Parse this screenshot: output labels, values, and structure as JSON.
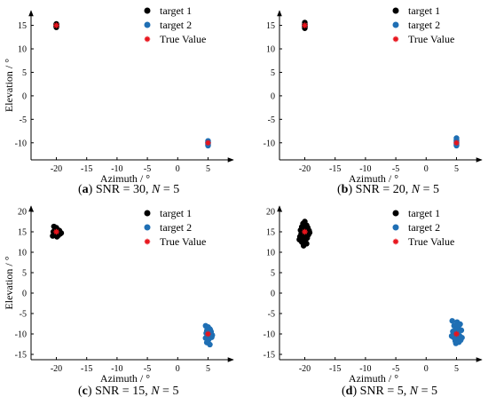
{
  "chart_data": [
    {
      "type": "scatter",
      "panel_label": "(a)",
      "caption": {
        "label": "a",
        "snr_text": "SNR = 30,",
        "n_var": "N",
        "n_text": "= 5"
      },
      "xlabel": "Azimuth / °",
      "ylabel": "Elevation / °",
      "xlim": [
        -23,
        8
      ],
      "ylim": [
        -12.5,
        17
      ],
      "xticks": [
        "-20",
        "-15",
        "-10",
        "-5",
        "0",
        "5"
      ],
      "yticks": [
        "15",
        "10",
        "5",
        "0",
        "-5",
        "-10"
      ],
      "legend_position": "top-right",
      "series": [
        {
          "name": "target 1",
          "color": "#000000",
          "marker": "circle",
          "points": [
            [
              -20,
              15
            ],
            [
              -20,
              14.8
            ],
            [
              -20,
              15.2
            ],
            [
              -20,
              14.6
            ],
            [
              -20,
              15.3
            ],
            [
              -20,
              14.9
            ]
          ]
        },
        {
          "name": "target 2",
          "color": "#1f6fb4",
          "marker": "circle",
          "points": [
            [
              5,
              -10
            ],
            [
              5,
              -9.6
            ],
            [
              5,
              -10.4
            ],
            [
              5,
              -9.8
            ],
            [
              5,
              -10.2
            ],
            [
              5,
              -10.6
            ]
          ]
        },
        {
          "name": "True Value",
          "color": "#e8141c",
          "marker": "star",
          "points": [
            [
              -20,
              15
            ],
            [
              5,
              -10
            ]
          ]
        }
      ]
    },
    {
      "type": "scatter",
      "panel_label": "(b)",
      "caption": {
        "label": "b",
        "snr_text": "SNR = 20,",
        "n_var": "N",
        "n_text": "= 5"
      },
      "xlabel": "Azimuth / °",
      "ylabel": "",
      "xlim": [
        -23,
        8
      ],
      "ylim": [
        -12.5,
        17
      ],
      "xticks": [
        "-20",
        "-15",
        "-10",
        "-5",
        "0",
        "5"
      ],
      "yticks": [
        "15",
        "10",
        "5",
        "0",
        "-5",
        "-10"
      ],
      "legend_position": "top-right",
      "series": [
        {
          "name": "target 1",
          "color": "#000000",
          "marker": "circle",
          "points": [
            [
              -20,
              15.6
            ],
            [
              -20,
              15.2
            ],
            [
              -20,
              14.8
            ],
            [
              -20,
              14.4
            ],
            [
              -20,
              15
            ],
            [
              -20,
              14.6
            ]
          ]
        },
        {
          "name": "target 2",
          "color": "#1f6fb4",
          "marker": "circle",
          "points": [
            [
              5,
              -9
            ],
            [
              5,
              -9.4
            ],
            [
              5,
              -9.8
            ],
            [
              5,
              -10.2
            ],
            [
              5,
              -10.6
            ],
            [
              5,
              -9.6
            ],
            [
              5,
              -10.4
            ]
          ]
        },
        {
          "name": "True Value",
          "color": "#e8141c",
          "marker": "star",
          "points": [
            [
              -20,
              15
            ],
            [
              5,
              -10
            ]
          ]
        }
      ]
    },
    {
      "type": "scatter",
      "panel_label": "(c)",
      "caption": {
        "label": "c",
        "snr_text": "SNR = 15,",
        "n_var": "N",
        "n_text": "= 5"
      },
      "xlabel": "Azimuth / °",
      "ylabel": "Elevation / °",
      "xlim": [
        -23,
        8
      ],
      "ylim": [
        -15,
        20
      ],
      "xticks": [
        "-20",
        "-15",
        "-10",
        "-5",
        "0",
        "5"
      ],
      "yticks": [
        "20",
        "15",
        "10",
        "5",
        "0",
        "-5",
        "-10",
        "-15"
      ],
      "legend_position": "top-right",
      "series": [
        {
          "name": "target 1",
          "color": "#000000",
          "marker": "circle",
          "points": [
            [
              -20.4,
              16.3
            ],
            [
              -20.2,
              15.8
            ],
            [
              -20,
              16
            ],
            [
              -19.8,
              15.5
            ],
            [
              -20.5,
              15
            ],
            [
              -20.3,
              14.6
            ],
            [
              -20.1,
              14.2
            ],
            [
              -19.9,
              13.8
            ],
            [
              -19.6,
              14.9
            ],
            [
              -19.4,
              14.5
            ],
            [
              -19.2,
              14.7
            ],
            [
              -20.6,
              14
            ],
            [
              -19.7,
              14.1
            ],
            [
              -20,
              15.2
            ],
            [
              -19.5,
              15.3
            ]
          ]
        },
        {
          "name": "target 2",
          "color": "#1f6fb4",
          "marker": "circle",
          "points": [
            [
              4.6,
              -8
            ],
            [
              5,
              -8.3
            ],
            [
              5.3,
              -8.8
            ],
            [
              4.8,
              -9.2
            ],
            [
              5.5,
              -9.5
            ],
            [
              4.7,
              -9.8
            ],
            [
              5.2,
              -10.1
            ],
            [
              4.9,
              -10.5
            ],
            [
              5.6,
              -10.8
            ],
            [
              4.6,
              -11
            ],
            [
              5.1,
              -11.4
            ],
            [
              4.8,
              -12.1
            ],
            [
              5.3,
              -12.6
            ],
            [
              5.4,
              -9.1
            ],
            [
              4.9,
              -8.6
            ],
            [
              5.7,
              -10.3
            ]
          ]
        },
        {
          "name": "True Value",
          "color": "#e8141c",
          "marker": "star",
          "points": [
            [
              -20,
              15
            ],
            [
              5,
              -10
            ]
          ]
        }
      ]
    },
    {
      "type": "scatter",
      "panel_label": "(d)",
      "caption": {
        "label": "d",
        "snr_text": "SNR = 5,",
        "n_var": "N",
        "n_text": "= 5"
      },
      "xlabel": "Azimuth / °",
      "ylabel": "",
      "xlim": [
        -23,
        8
      ],
      "ylim": [
        -15,
        20
      ],
      "xticks": [
        "-20",
        "-15",
        "-10",
        "-5",
        "0",
        "5"
      ],
      "yticks": [
        "20",
        "15",
        "10",
        "5",
        "0",
        "-5",
        "-10",
        "-15"
      ],
      "legend_position": "top-right",
      "series": [
        {
          "name": "target 1",
          "color": "#000000",
          "marker": "circle",
          "points": [
            [
              -20,
              17.5
            ],
            [
              -20.3,
              17
            ],
            [
              -19.7,
              16.6
            ],
            [
              -20.5,
              16.2
            ],
            [
              -19.5,
              16
            ],
            [
              -20.1,
              15.7
            ],
            [
              -20.7,
              15.4
            ],
            [
              -19.3,
              15.3
            ],
            [
              -20.2,
              15
            ],
            [
              -19.8,
              14.7
            ],
            [
              -20.6,
              14.5
            ],
            [
              -19.4,
              14.3
            ],
            [
              -20,
              14
            ],
            [
              -20.8,
              13.8
            ],
            [
              -19.6,
              13.5
            ],
            [
              -20.3,
              13.2
            ],
            [
              -19.9,
              12.9
            ],
            [
              -20.5,
              12.5
            ],
            [
              -19.7,
              12.1
            ],
            [
              -20.2,
              11.6
            ],
            [
              -20.9,
              13.1
            ],
            [
              -19.2,
              14.8
            ]
          ]
        },
        {
          "name": "target 2",
          "color": "#1f6fb4",
          "marker": "circle",
          "points": [
            [
              4.3,
              -6.8
            ],
            [
              5.1,
              -7.1
            ],
            [
              5.6,
              -7.6
            ],
            [
              4.6,
              -8
            ],
            [
              5.3,
              -8.4
            ],
            [
              4.9,
              -8.8
            ],
            [
              5.8,
              -9.1
            ],
            [
              4.4,
              -9.4
            ],
            [
              5.2,
              -9.7
            ],
            [
              4.7,
              -10.1
            ],
            [
              5.5,
              -10.4
            ],
            [
              4.5,
              -10.8
            ],
            [
              5.9,
              -10.9
            ],
            [
              5,
              -11.3
            ],
            [
              4.8,
              -11.7
            ],
            [
              5.4,
              -12
            ],
            [
              5.7,
              -11.5
            ],
            [
              4.2,
              -10.5
            ],
            [
              5.3,
              -7.9
            ],
            [
              4.9,
              -12.3
            ]
          ]
        },
        {
          "name": "True Value",
          "color": "#e8141c",
          "marker": "star",
          "points": [
            [
              -20,
              15
            ],
            [
              5,
              -10
            ]
          ]
        }
      ]
    }
  ]
}
